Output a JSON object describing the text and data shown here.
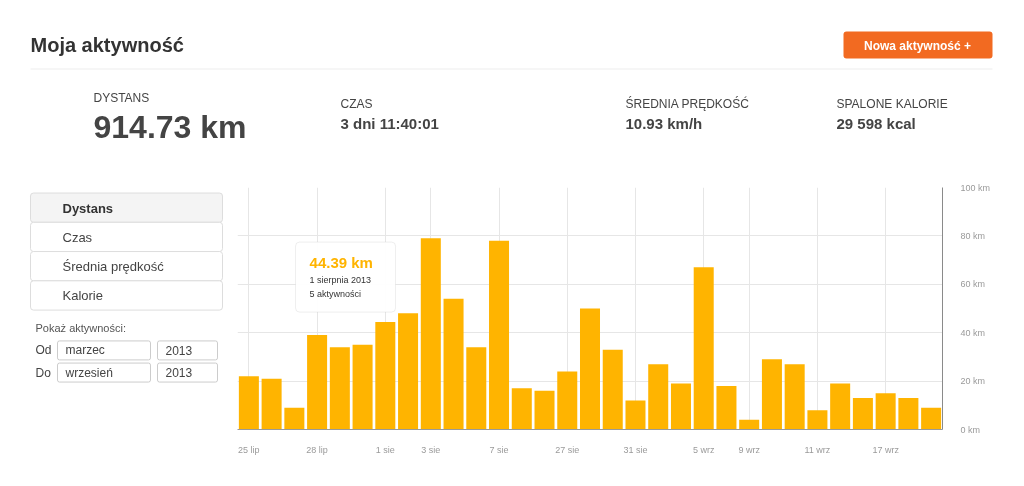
{
  "chart_data": {
    "type": "bar",
    "title": "Moja aktywność",
    "categories": [
      "25 lip",
      null,
      null,
      "28 lip",
      null,
      null,
      "1 sie",
      null,
      "3 sie",
      null,
      null,
      "7 sie",
      null,
      null,
      "27 sie",
      null,
      null,
      "31 sie",
      null,
      null,
      "5 wrz",
      null,
      "9 wrz",
      null,
      null,
      "11 wrz",
      null,
      null,
      "17 wrz",
      null,
      null
    ],
    "values": [
      22,
      21,
      9,
      39,
      34,
      35,
      44.39,
      48,
      79,
      54,
      34,
      78,
      17,
      16,
      24,
      50,
      33,
      12,
      27,
      19,
      67,
      18,
      4,
      29,
      27,
      8,
      19,
      13,
      15,
      13,
      9
    ],
    "color": "#ffb400",
    "ylim": [
      0,
      100
    ],
    "yticks": [
      {
        "value": 0,
        "label": "0 km"
      },
      {
        "value": 20,
        "label": "20 km"
      },
      {
        "value": 40,
        "label": "40 km"
      },
      {
        "value": 60,
        "label": "60 km"
      },
      {
        "value": 80,
        "label": "80 km"
      },
      {
        "value": 100,
        "label": "100 km"
      }
    ],
    "grid": true,
    "annotations": [
      "Nowa aktywność +",
      "DYSTANS",
      "914.73 km",
      "CZAS",
      "3 dni 11:40:01",
      "ŚREDNIA PRĘDKOŚĆ",
      "10.93 km/h",
      "SPALONE KALORIE",
      "29 598 kcal",
      "Dystans",
      "Czas",
      "Średnia prędkość",
      "Kalorie",
      "Pokaż aktywności:",
      "Od",
      "marzec",
      "2013",
      "Do",
      "wrzesień",
      "2013",
      {
        "text": "44.39 km\n1 sierpnia 2013\n5 aktywności",
        "x": "1 sie",
        "y": 44.39
      }
    ]
  }
}
